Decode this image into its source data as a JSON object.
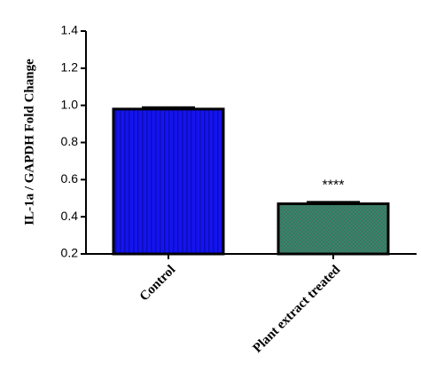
{
  "chart_data": {
    "type": "bar",
    "ylabel": "IL-1a / GAPDH Fold Change",
    "categories": [
      "Control",
      "Plant extract treated"
    ],
    "values": [
      0.98,
      0.47
    ],
    "errors": [
      0.01,
      0.01
    ],
    "colors": [
      "#1414f0",
      "#2e8a6c"
    ],
    "annotations": [
      {
        "category": 1,
        "text": "****"
      }
    ],
    "ylim": [
      0.2,
      1.4
    ],
    "yticks": [
      0.2,
      0.4,
      0.6,
      0.8,
      {
        "value": 1,
        "label": "1.0"
      },
      1.2,
      1.4
    ]
  }
}
